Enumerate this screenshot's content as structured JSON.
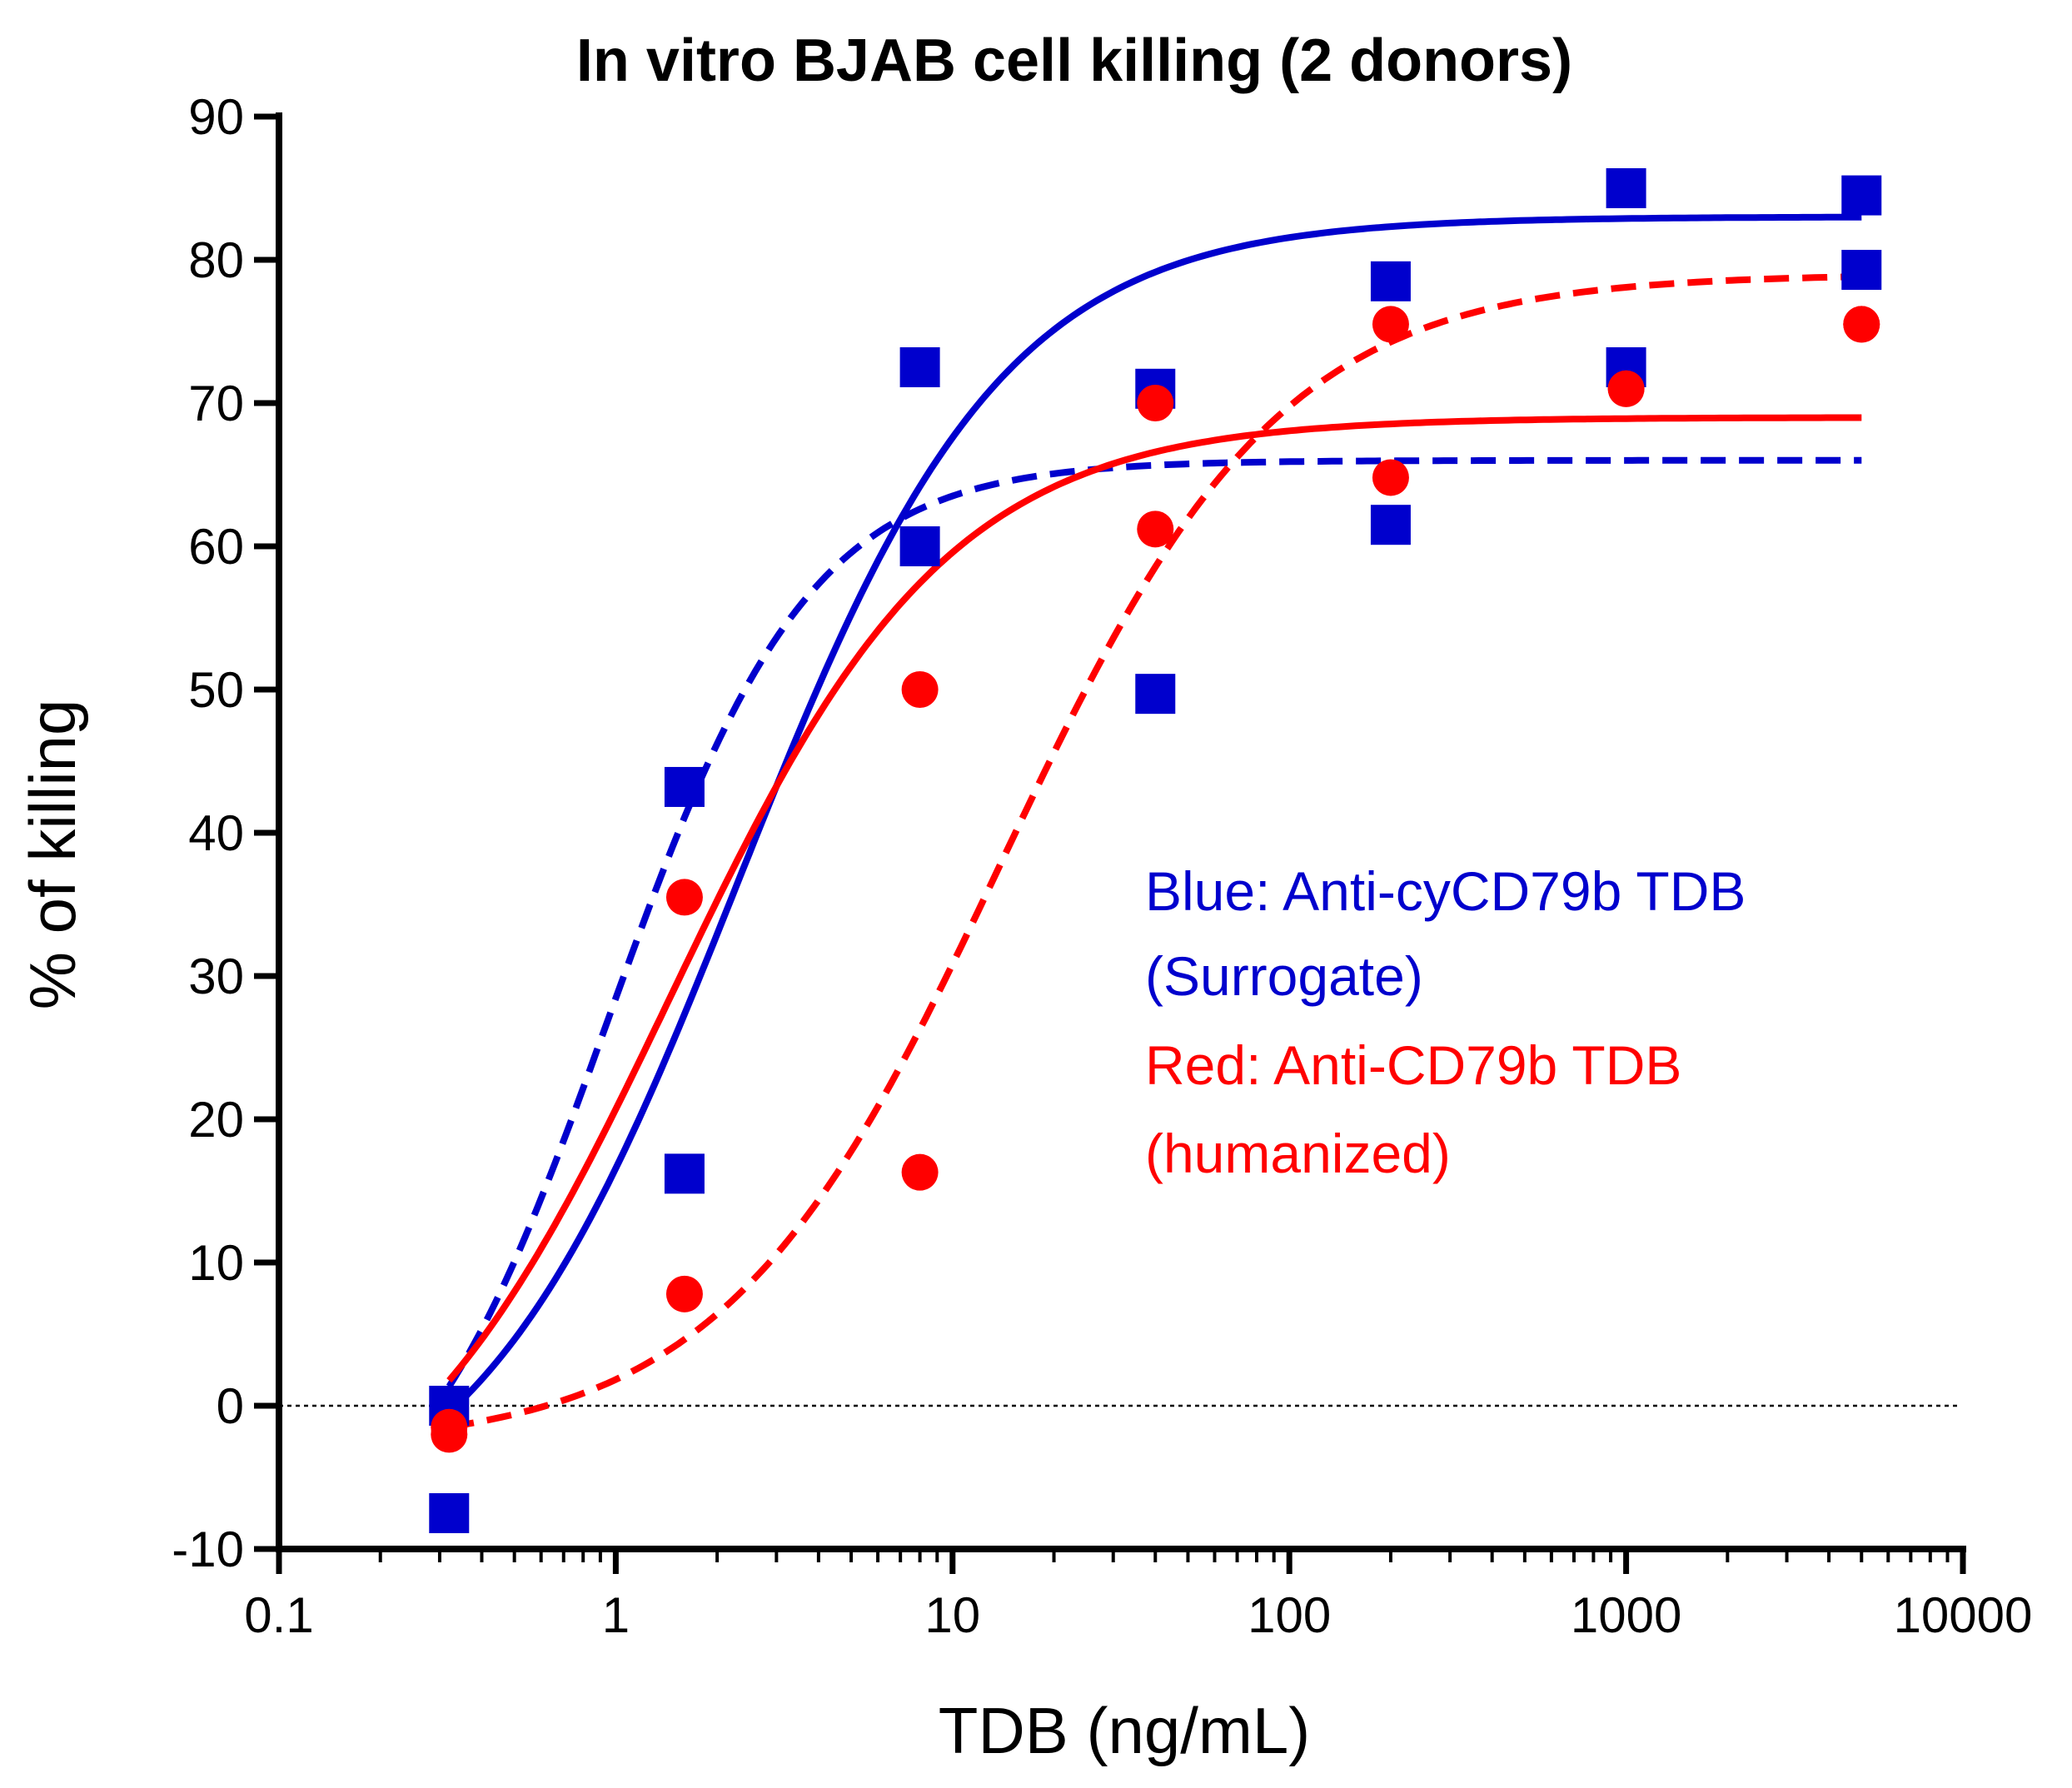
{
  "chart_data": {
    "type": "scatter",
    "title": "In vitro BJAB cell killing (2 donors)",
    "xlabel": "TDB (ng/mL)",
    "ylabel": "% of killing",
    "xscale": "log",
    "xlim": [
      0.1,
      10000
    ],
    "ylim": [
      -10,
      90
    ],
    "xticks": [
      0.1,
      1,
      10,
      100,
      1000,
      10000
    ],
    "xtick_labels": [
      "0.1",
      "1",
      "10",
      "100",
      "1000",
      "10000"
    ],
    "yticks": [
      -10,
      0,
      10,
      20,
      30,
      40,
      50,
      60,
      70,
      80,
      90
    ],
    "ytick_labels": [
      "-10",
      "0",
      "10",
      "20",
      "30",
      "40",
      "50",
      "60",
      "70",
      "80",
      "90"
    ],
    "reference_line": {
      "y": 0,
      "style": "dotted"
    },
    "annotations": {
      "blue_line1": "Blue: Anti-cyCD79b TDB",
      "blue_line2": "(Surrogate)",
      "red_line1": "Red: Anti-CD79b TDB",
      "red_line2": "(humanized)"
    },
    "series": [
      {
        "name": "Anti-cyCD79b TDB (Surrogate) - donor 1",
        "color": "#0000CD",
        "marker": "square",
        "line": "solid",
        "x": [
          0.32,
          1.6,
          8,
          40,
          200,
          1000,
          5000
        ],
        "y": [
          -7.5,
          16.2,
          72.5,
          71,
          78.5,
          85,
          84.5
        ],
        "fit": {
          "bottom": -10,
          "top": 83,
          "ec50": 2.3,
          "hill": 1.1
        }
      },
      {
        "name": "Anti-cyCD79b TDB (Surrogate) - donor 2",
        "color": "#0000CD",
        "marker": "square",
        "line": "dashed",
        "x": [
          0.32,
          1.6,
          8,
          40,
          200,
          1000,
          5000
        ],
        "y": [
          0,
          43.2,
          60,
          49.7,
          61.5,
          72.5,
          79.3
        ],
        "fit": {
          "bottom": -12,
          "top": 66,
          "ec50": 0.95,
          "hill": 1.45
        }
      },
      {
        "name": "Anti-CD79b TDB (humanized) - donor 1",
        "color": "#FF0000",
        "marker": "circle",
        "line": "solid",
        "x": [
          0.32,
          1.6,
          8,
          40,
          200,
          1000,
          5000
        ],
        "y": [
          -1.5,
          35.5,
          50,
          70,
          64.8,
          71,
          75.5
        ],
        "fit": {
          "bottom": -12,
          "top": 69,
          "ec50": 1.45,
          "hill": 1.05
        }
      },
      {
        "name": "Anti-CD79b TDB (humanized) - donor 2",
        "color": "#FF0000",
        "marker": "circle",
        "line": "dashed",
        "x": [
          0.32,
          1.6,
          8,
          40,
          200,
          1000,
          5000
        ],
        "y": [
          -2,
          7.8,
          16.3,
          61.2,
          75.5,
          71,
          75.5
        ],
        "fit": {
          "bottom": -3,
          "top": 79,
          "ec50": 14,
          "hill": 1.05
        }
      }
    ]
  }
}
